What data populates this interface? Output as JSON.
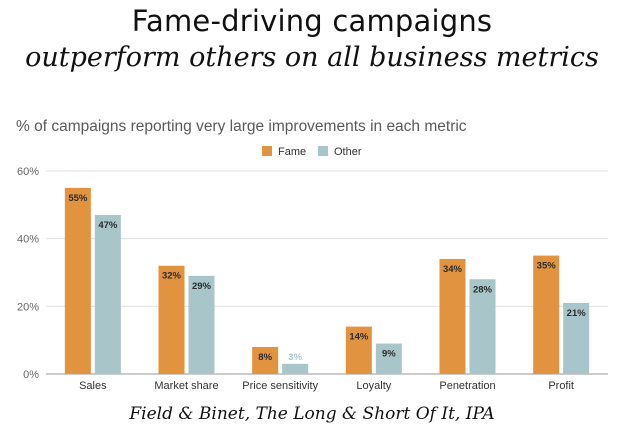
{
  "header": {
    "title_line1": "Fame-driving campaigns",
    "title_line2": "outperform others on all business metrics"
  },
  "footer": {
    "source": "Field & Binet, The Long & Short Of It, IPA"
  },
  "colors": {
    "fame": "#E2933F",
    "other": "#A8C5CA",
    "grid": "#E0E0E0",
    "axis": "#666666"
  },
  "chart_data": {
    "type": "bar",
    "title": "% of campaigns reporting very large improvements in each metric",
    "categories": [
      "Sales",
      "Market share",
      "Price sensitivity",
      "Loyalty",
      "Penetration",
      "Profit"
    ],
    "series": [
      {
        "name": "Fame",
        "values": [
          55,
          32,
          8,
          14,
          34,
          35
        ],
        "labels": [
          "55%",
          "32%",
          "8%",
          "14%",
          "34%",
          "35%"
        ]
      },
      {
        "name": "Other",
        "values": [
          47,
          29,
          3,
          9,
          28,
          21
        ],
        "labels": [
          "47%",
          "29%",
          "3%",
          "9%",
          "28%",
          "21%"
        ]
      }
    ],
    "ylim": [
      0,
      60
    ],
    "yticks": [
      0,
      20,
      40,
      60
    ],
    "ytick_labels": [
      "0%",
      "20%",
      "40%",
      "60%"
    ],
    "xlabel": "",
    "ylabel": "",
    "grid": true,
    "legend": "top-center"
  }
}
